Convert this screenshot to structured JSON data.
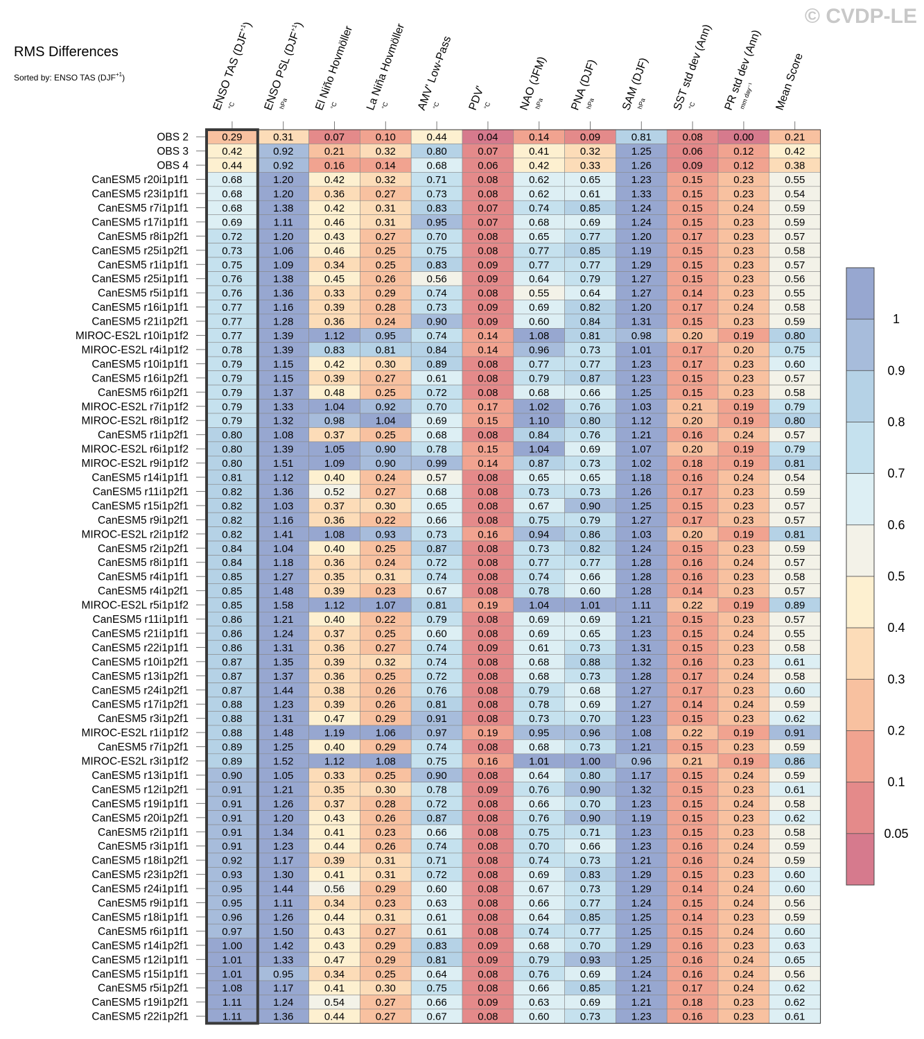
{
  "title": "RMS Differences",
  "subtitle": "Sorted by: ENSO TAS (DJF",
  "subtitle_sup": "+1",
  "subtitle_end": ")",
  "watermark": "© CVDP-LE",
  "chart_data": {
    "type": "heatmap",
    "title": "RMS Differences",
    "sorted_by": "ENSO TAS (DJF+1)",
    "columns": [
      {
        "name": "ENSO TAS (DJF",
        "sup": "+1",
        "end": ")",
        "unit": "°C"
      },
      {
        "name": "ENSO PSL (DJF",
        "sup": "+1",
        "end": ")",
        "unit": "hPa"
      },
      {
        "name": "El Niño Hovmöller",
        "sup": "",
        "end": "",
        "unit": "°C"
      },
      {
        "name": "La Niña Hovmöller",
        "sup": "",
        "end": "",
        "unit": "°C"
      },
      {
        "name": "AMV' Low-Pass",
        "sup": "",
        "end": "",
        "unit": "°C"
      },
      {
        "name": "PDV'",
        "sup": "",
        "end": "",
        "unit": "°C"
      },
      {
        "name": "NAO (JFM)",
        "sup": "",
        "end": "",
        "unit": "hPa"
      },
      {
        "name": "PNA (DJF)",
        "sup": "",
        "end": "",
        "unit": "hPa"
      },
      {
        "name": "SAM (DJF)",
        "sup": "",
        "end": "",
        "unit": "hPa"
      },
      {
        "name": "SST std dev (Ann)",
        "sup": "",
        "end": "",
        "unit": "°C"
      },
      {
        "name": "PR std dev (Ann)",
        "sup": "",
        "end": "",
        "unit": "mm day⁻¹"
      },
      {
        "name": "Mean Score",
        "sup": "",
        "end": "",
        "unit": ""
      }
    ],
    "rows": [
      {
        "name": "OBS 2",
        "values": [
          0.29,
          0.31,
          0.07,
          0.1,
          0.44,
          0.04,
          0.14,
          0.09,
          0.81,
          0.08,
          0.0,
          0.21
        ]
      },
      {
        "name": "OBS 3",
        "values": [
          0.42,
          0.92,
          0.21,
          0.32,
          0.8,
          0.07,
          0.41,
          0.32,
          1.25,
          0.06,
          0.12,
          0.42
        ]
      },
      {
        "name": "OBS 4",
        "values": [
          0.44,
          0.92,
          0.16,
          0.14,
          0.68,
          0.06,
          0.42,
          0.33,
          1.26,
          0.09,
          0.12,
          0.38
        ]
      },
      {
        "name": "CanESM5 r20i1p1f1",
        "values": [
          0.68,
          1.2,
          0.42,
          0.32,
          0.71,
          0.08,
          0.62,
          0.65,
          1.23,
          0.15,
          0.23,
          0.55
        ]
      },
      {
        "name": "CanESM5 r23i1p1f1",
        "values": [
          0.68,
          1.2,
          0.36,
          0.27,
          0.73,
          0.08,
          0.62,
          0.61,
          1.33,
          0.15,
          0.23,
          0.54
        ]
      },
      {
        "name": "CanESM5 r7i1p1f1",
        "values": [
          0.68,
          1.38,
          0.42,
          0.31,
          0.83,
          0.07,
          0.74,
          0.85,
          1.24,
          0.15,
          0.24,
          0.59
        ]
      },
      {
        "name": "CanESM5 r17i1p1f1",
        "values": [
          0.69,
          1.11,
          0.46,
          0.31,
          0.95,
          0.07,
          0.68,
          0.69,
          1.24,
          0.15,
          0.23,
          0.59
        ]
      },
      {
        "name": "CanESM5 r8i1p2f1",
        "values": [
          0.72,
          1.2,
          0.43,
          0.27,
          0.7,
          0.08,
          0.65,
          0.77,
          1.2,
          0.17,
          0.23,
          0.57
        ]
      },
      {
        "name": "CanESM5 r25i1p2f1",
        "values": [
          0.73,
          1.06,
          0.46,
          0.25,
          0.75,
          0.08,
          0.77,
          0.85,
          1.19,
          0.15,
          0.23,
          0.58
        ]
      },
      {
        "name": "CanESM5 r1i1p1f1",
        "values": [
          0.75,
          1.09,
          0.34,
          0.25,
          0.83,
          0.09,
          0.77,
          0.77,
          1.29,
          0.15,
          0.23,
          0.57
        ]
      },
      {
        "name": "CanESM5 r25i1p1f1",
        "values": [
          0.76,
          1.38,
          0.45,
          0.26,
          0.56,
          0.09,
          0.64,
          0.79,
          1.27,
          0.15,
          0.23,
          0.56
        ]
      },
      {
        "name": "CanESM5 r5i1p1f1",
        "values": [
          0.76,
          1.36,
          0.33,
          0.29,
          0.74,
          0.08,
          0.55,
          0.64,
          1.27,
          0.14,
          0.23,
          0.55
        ]
      },
      {
        "name": "CanESM5 r16i1p1f1",
        "values": [
          0.77,
          1.16,
          0.39,
          0.28,
          0.73,
          0.09,
          0.69,
          0.82,
          1.2,
          0.17,
          0.24,
          0.58
        ]
      },
      {
        "name": "CanESM5 r21i1p2f1",
        "values": [
          0.77,
          1.28,
          0.36,
          0.24,
          0.9,
          0.09,
          0.6,
          0.84,
          1.31,
          0.15,
          0.23,
          0.59
        ]
      },
      {
        "name": "MIROC-ES2L r10i1p1f2",
        "values": [
          0.77,
          1.39,
          1.12,
          0.95,
          0.74,
          0.14,
          1.08,
          0.81,
          0.98,
          0.2,
          0.19,
          0.8
        ]
      },
      {
        "name": "MIROC-ES2L r4i1p1f2",
        "values": [
          0.78,
          1.39,
          0.83,
          0.81,
          0.84,
          0.14,
          0.96,
          0.73,
          1.01,
          0.17,
          0.2,
          0.75
        ]
      },
      {
        "name": "CanESM5 r10i1p1f1",
        "values": [
          0.79,
          1.15,
          0.42,
          0.3,
          0.89,
          0.08,
          0.77,
          0.77,
          1.23,
          0.17,
          0.23,
          0.6
        ]
      },
      {
        "name": "CanESM5 r16i1p2f1",
        "values": [
          0.79,
          1.15,
          0.39,
          0.27,
          0.61,
          0.08,
          0.79,
          0.87,
          1.23,
          0.15,
          0.23,
          0.57
        ]
      },
      {
        "name": "CanESM5 r6i1p2f1",
        "values": [
          0.79,
          1.37,
          0.48,
          0.25,
          0.72,
          0.08,
          0.68,
          0.66,
          1.25,
          0.15,
          0.23,
          0.58
        ]
      },
      {
        "name": "MIROC-ES2L r7i1p1f2",
        "values": [
          0.79,
          1.33,
          1.04,
          0.92,
          0.7,
          0.17,
          1.02,
          0.76,
          1.03,
          0.21,
          0.19,
          0.79
        ]
      },
      {
        "name": "MIROC-ES2L r8i1p1f2",
        "values": [
          0.79,
          1.32,
          0.98,
          1.04,
          0.69,
          0.15,
          1.1,
          0.8,
          1.12,
          0.2,
          0.19,
          0.8
        ]
      },
      {
        "name": "CanESM5 r1i1p2f1",
        "values": [
          0.8,
          1.08,
          0.37,
          0.25,
          0.68,
          0.08,
          0.84,
          0.76,
          1.21,
          0.16,
          0.24,
          0.57
        ]
      },
      {
        "name": "MIROC-ES2L r6i1p1f2",
        "values": [
          0.8,
          1.39,
          1.05,
          0.9,
          0.78,
          0.15,
          1.04,
          0.69,
          1.07,
          0.2,
          0.19,
          0.79
        ]
      },
      {
        "name": "MIROC-ES2L r9i1p1f2",
        "values": [
          0.8,
          1.51,
          1.09,
          0.9,
          0.99,
          0.14,
          0.87,
          0.73,
          1.02,
          0.18,
          0.19,
          0.81
        ]
      },
      {
        "name": "CanESM5 r14i1p1f1",
        "values": [
          0.81,
          1.12,
          0.4,
          0.24,
          0.57,
          0.08,
          0.65,
          0.65,
          1.18,
          0.16,
          0.24,
          0.54
        ]
      },
      {
        "name": "CanESM5 r11i1p2f1",
        "values": [
          0.82,
          1.36,
          0.52,
          0.27,
          0.68,
          0.08,
          0.73,
          0.73,
          1.26,
          0.17,
          0.23,
          0.59
        ]
      },
      {
        "name": "CanESM5 r15i1p2f1",
        "values": [
          0.82,
          1.03,
          0.37,
          0.3,
          0.65,
          0.08,
          0.67,
          0.9,
          1.25,
          0.15,
          0.23,
          0.57
        ]
      },
      {
        "name": "CanESM5 r9i1p2f1",
        "values": [
          0.82,
          1.16,
          0.36,
          0.22,
          0.66,
          0.08,
          0.75,
          0.79,
          1.27,
          0.17,
          0.23,
          0.57
        ]
      },
      {
        "name": "MIROC-ES2L r2i1p1f2",
        "values": [
          0.82,
          1.41,
          1.08,
          0.93,
          0.73,
          0.16,
          0.94,
          0.86,
          1.03,
          0.2,
          0.19,
          0.81
        ]
      },
      {
        "name": "CanESM5 r2i1p2f1",
        "values": [
          0.84,
          1.04,
          0.4,
          0.25,
          0.87,
          0.08,
          0.73,
          0.82,
          1.24,
          0.15,
          0.23,
          0.59
        ]
      },
      {
        "name": "CanESM5 r8i1p1f1",
        "values": [
          0.84,
          1.18,
          0.36,
          0.24,
          0.72,
          0.08,
          0.77,
          0.77,
          1.28,
          0.16,
          0.24,
          0.57
        ]
      },
      {
        "name": "CanESM5 r4i1p1f1",
        "values": [
          0.85,
          1.27,
          0.35,
          0.31,
          0.74,
          0.08,
          0.74,
          0.66,
          1.28,
          0.16,
          0.23,
          0.58
        ]
      },
      {
        "name": "CanESM5 r4i1p2f1",
        "values": [
          0.85,
          1.48,
          0.39,
          0.23,
          0.67,
          0.08,
          0.78,
          0.6,
          1.28,
          0.14,
          0.23,
          0.57
        ]
      },
      {
        "name": "MIROC-ES2L r5i1p1f2",
        "values": [
          0.85,
          1.58,
          1.12,
          1.07,
          0.81,
          0.19,
          1.04,
          1.01,
          1.11,
          0.22,
          0.19,
          0.89
        ]
      },
      {
        "name": "CanESM5 r11i1p1f1",
        "values": [
          0.86,
          1.21,
          0.4,
          0.22,
          0.79,
          0.08,
          0.69,
          0.69,
          1.21,
          0.15,
          0.23,
          0.57
        ]
      },
      {
        "name": "CanESM5 r21i1p1f1",
        "values": [
          0.86,
          1.24,
          0.37,
          0.25,
          0.6,
          0.08,
          0.69,
          0.65,
          1.23,
          0.15,
          0.24,
          0.55
        ]
      },
      {
        "name": "CanESM5 r22i1p1f1",
        "values": [
          0.86,
          1.31,
          0.36,
          0.27,
          0.74,
          0.09,
          0.61,
          0.73,
          1.31,
          0.15,
          0.23,
          0.58
        ]
      },
      {
        "name": "CanESM5 r10i1p2f1",
        "values": [
          0.87,
          1.35,
          0.39,
          0.32,
          0.74,
          0.08,
          0.68,
          0.88,
          1.32,
          0.16,
          0.23,
          0.61
        ]
      },
      {
        "name": "CanESM5 r13i1p2f1",
        "values": [
          0.87,
          1.37,
          0.36,
          0.25,
          0.72,
          0.08,
          0.68,
          0.73,
          1.28,
          0.17,
          0.24,
          0.58
        ]
      },
      {
        "name": "CanESM5 r24i1p2f1",
        "values": [
          0.87,
          1.44,
          0.38,
          0.26,
          0.76,
          0.08,
          0.79,
          0.68,
          1.27,
          0.17,
          0.23,
          0.6
        ]
      },
      {
        "name": "CanESM5 r17i1p2f1",
        "values": [
          0.88,
          1.23,
          0.39,
          0.26,
          0.81,
          0.08,
          0.78,
          0.69,
          1.27,
          0.14,
          0.24,
          0.59
        ]
      },
      {
        "name": "CanESM5 r3i1p2f1",
        "values": [
          0.88,
          1.31,
          0.47,
          0.29,
          0.91,
          0.08,
          0.73,
          0.7,
          1.23,
          0.15,
          0.23,
          0.62
        ]
      },
      {
        "name": "MIROC-ES2L r1i1p1f2",
        "values": [
          0.88,
          1.48,
          1.19,
          1.06,
          0.97,
          0.19,
          0.95,
          0.96,
          1.08,
          0.22,
          0.19,
          0.91
        ]
      },
      {
        "name": "CanESM5 r7i1p2f1",
        "values": [
          0.89,
          1.25,
          0.4,
          0.29,
          0.74,
          0.08,
          0.68,
          0.73,
          1.21,
          0.15,
          0.23,
          0.59
        ]
      },
      {
        "name": "MIROC-ES2L r3i1p1f2",
        "values": [
          0.89,
          1.52,
          1.12,
          1.08,
          0.75,
          0.16,
          1.01,
          1.0,
          0.96,
          0.21,
          0.19,
          0.86
        ]
      },
      {
        "name": "CanESM5 r13i1p1f1",
        "values": [
          0.9,
          1.05,
          0.33,
          0.25,
          0.9,
          0.08,
          0.64,
          0.8,
          1.17,
          0.15,
          0.24,
          0.59
        ]
      },
      {
        "name": "CanESM5 r12i1p2f1",
        "values": [
          0.91,
          1.21,
          0.35,
          0.3,
          0.78,
          0.09,
          0.76,
          0.9,
          1.32,
          0.15,
          0.23,
          0.61
        ]
      },
      {
        "name": "CanESM5 r19i1p1f1",
        "values": [
          0.91,
          1.26,
          0.37,
          0.28,
          0.72,
          0.08,
          0.66,
          0.7,
          1.23,
          0.15,
          0.24,
          0.58
        ]
      },
      {
        "name": "CanESM5 r20i1p2f1",
        "values": [
          0.91,
          1.2,
          0.43,
          0.26,
          0.87,
          0.08,
          0.76,
          0.9,
          1.19,
          0.15,
          0.23,
          0.62
        ]
      },
      {
        "name": "CanESM5 r2i1p1f1",
        "values": [
          0.91,
          1.34,
          0.41,
          0.23,
          0.66,
          0.08,
          0.75,
          0.71,
          1.23,
          0.15,
          0.23,
          0.58
        ]
      },
      {
        "name": "CanESM5 r3i1p1f1",
        "values": [
          0.91,
          1.23,
          0.44,
          0.26,
          0.74,
          0.08,
          0.7,
          0.66,
          1.23,
          0.16,
          0.24,
          0.59
        ]
      },
      {
        "name": "CanESM5 r18i1p2f1",
        "values": [
          0.92,
          1.17,
          0.39,
          0.31,
          0.71,
          0.08,
          0.74,
          0.73,
          1.21,
          0.16,
          0.24,
          0.59
        ]
      },
      {
        "name": "CanESM5 r23i1p2f1",
        "values": [
          0.93,
          1.3,
          0.41,
          0.31,
          0.72,
          0.08,
          0.69,
          0.83,
          1.29,
          0.15,
          0.23,
          0.6
        ]
      },
      {
        "name": "CanESM5 r24i1p1f1",
        "values": [
          0.95,
          1.44,
          0.56,
          0.29,
          0.6,
          0.08,
          0.67,
          0.73,
          1.29,
          0.14,
          0.24,
          0.6
        ]
      },
      {
        "name": "CanESM5 r9i1p1f1",
        "values": [
          0.95,
          1.11,
          0.34,
          0.23,
          0.63,
          0.08,
          0.66,
          0.77,
          1.24,
          0.15,
          0.24,
          0.56
        ]
      },
      {
        "name": "CanESM5 r18i1p1f1",
        "values": [
          0.96,
          1.26,
          0.44,
          0.31,
          0.61,
          0.08,
          0.64,
          0.85,
          1.25,
          0.14,
          0.23,
          0.59
        ]
      },
      {
        "name": "CanESM5 r6i1p1f1",
        "values": [
          0.97,
          1.5,
          0.43,
          0.27,
          0.61,
          0.08,
          0.74,
          0.77,
          1.25,
          0.15,
          0.24,
          0.6
        ]
      },
      {
        "name": "CanESM5 r14i1p2f1",
        "values": [
          1.0,
          1.42,
          0.43,
          0.29,
          0.83,
          0.09,
          0.68,
          0.7,
          1.29,
          0.16,
          0.23,
          0.63
        ]
      },
      {
        "name": "CanESM5 r12i1p1f1",
        "values": [
          1.01,
          1.33,
          0.47,
          0.29,
          0.81,
          0.09,
          0.79,
          0.93,
          1.25,
          0.16,
          0.24,
          0.65
        ]
      },
      {
        "name": "CanESM5 r15i1p1f1",
        "values": [
          1.01,
          0.95,
          0.34,
          0.25,
          0.64,
          0.08,
          0.76,
          0.69,
          1.24,
          0.16,
          0.24,
          0.56
        ]
      },
      {
        "name": "CanESM5 r5i1p2f1",
        "values": [
          1.08,
          1.17,
          0.41,
          0.3,
          0.75,
          0.08,
          0.66,
          0.85,
          1.21,
          0.17,
          0.24,
          0.62
        ]
      },
      {
        "name": "CanESM5 r19i1p2f1",
        "values": [
          1.11,
          1.24,
          0.54,
          0.27,
          0.66,
          0.09,
          0.63,
          0.69,
          1.21,
          0.18,
          0.23,
          0.62
        ]
      },
      {
        "name": "CanESM5 r22i1p2f1",
        "values": [
          1.11,
          1.36,
          0.44,
          0.27,
          0.67,
          0.08,
          0.6,
          0.73,
          1.23,
          0.16,
          0.23,
          0.61
        ]
      }
    ],
    "highlighted_column": 0,
    "colorbar": {
      "labels": [
        "1",
        "0.9",
        "0.8",
        "0.7",
        "0.6",
        "0.5",
        "0.4",
        "0.3",
        "0.2",
        "0.1",
        "0.05"
      ],
      "thresholds": [
        0.05,
        0.1,
        0.2,
        0.3,
        0.4,
        0.5,
        0.6,
        0.7,
        0.8,
        0.9,
        1
      ],
      "colors": [
        "#d67a8d",
        "#e48a8a",
        "#f1a390",
        "#f8c1a0",
        "#fcdcb8",
        "#fdf0d0",
        "#f3f2e8",
        "#ddeff4",
        "#c5e1ee",
        "#b5d2e6",
        "#a7bcdb",
        "#97a7d0"
      ]
    }
  }
}
